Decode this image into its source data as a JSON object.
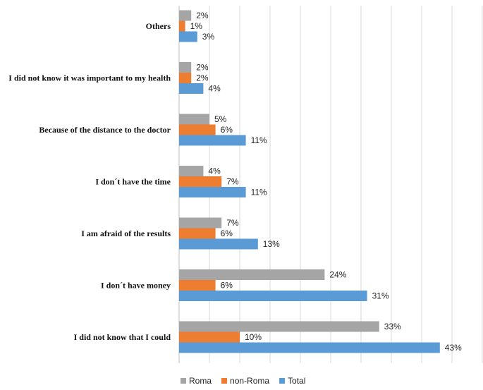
{
  "chart_data": {
    "type": "bar",
    "orientation": "horizontal",
    "categories": [
      "Others",
      "I did not know it was important to my health",
      "Because of the distance to the doctor",
      "I don´t have the time",
      "I am afraid of the results",
      "I don´t have money",
      "I did not know that I could"
    ],
    "series": [
      {
        "name": "Roma",
        "color": "#a5a5a5",
        "values": [
          2,
          2,
          5,
          4,
          7,
          24,
          33
        ]
      },
      {
        "name": "non-Roma",
        "color": "#ed7d31",
        "values": [
          1,
          2,
          6,
          7,
          6,
          6,
          10
        ]
      },
      {
        "name": "Total",
        "color": "#5b9bd5",
        "values": [
          3,
          4,
          11,
          11,
          13,
          31,
          43
        ]
      }
    ],
    "value_suffix": "%",
    "xlim": [
      0,
      50
    ],
    "grid": true,
    "legend_position": "bottom"
  }
}
